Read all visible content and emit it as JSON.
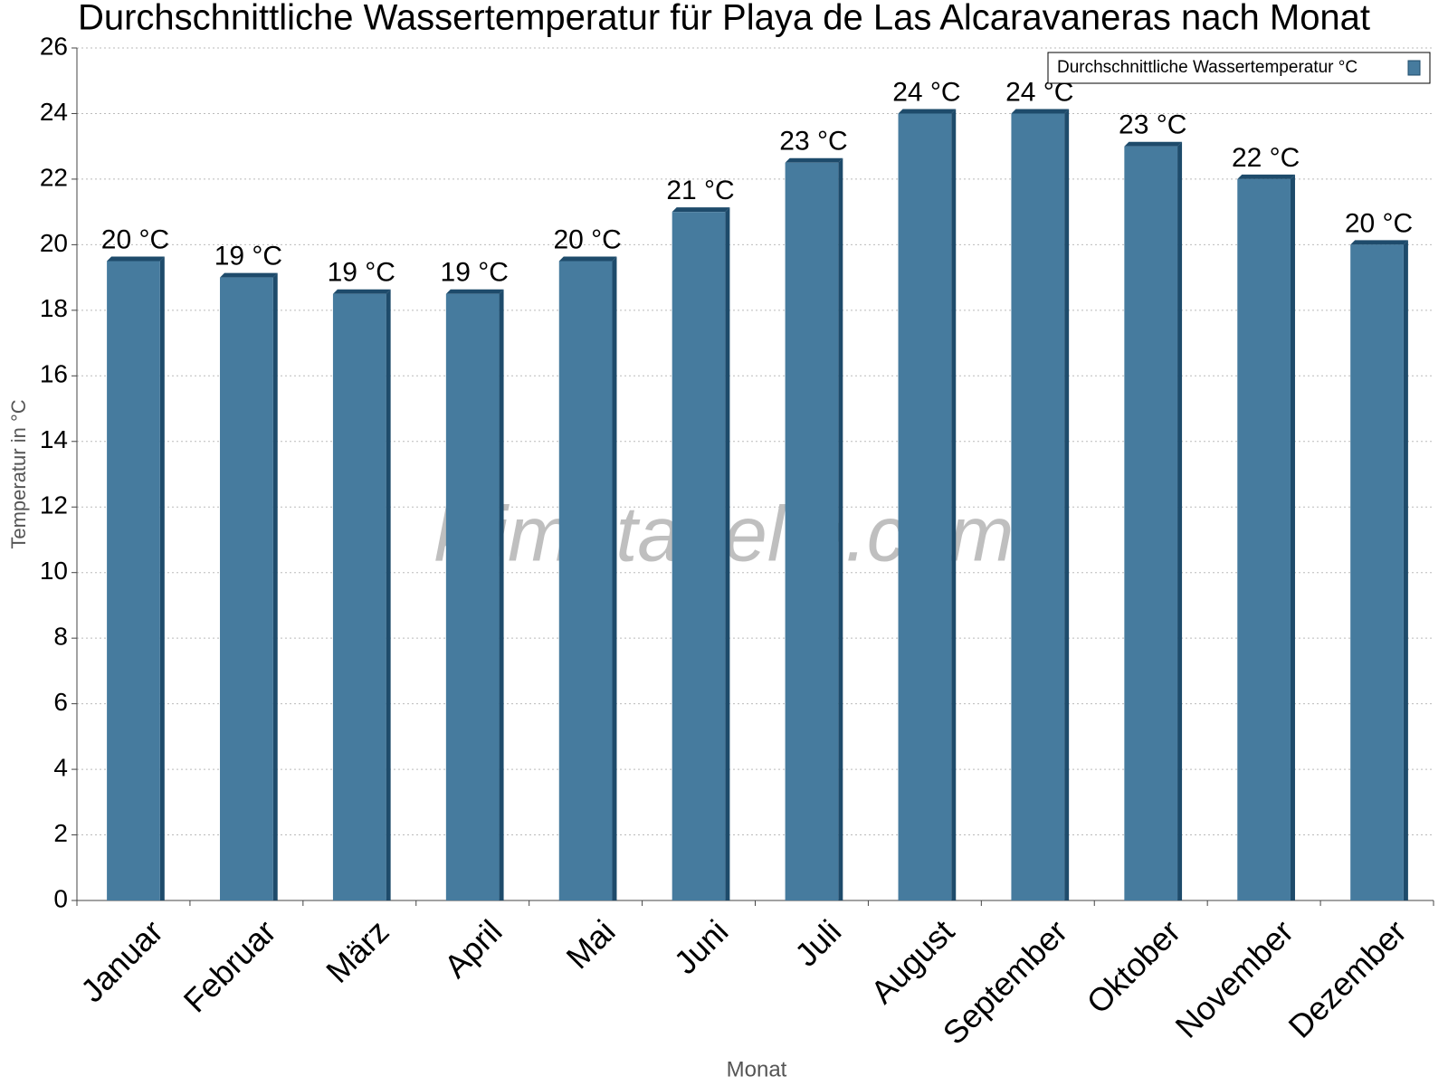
{
  "chart_data": {
    "type": "bar",
    "title": "Durchschnittliche Wassertemperatur für Playa de Las Alcaravaneras nach Monat",
    "watermark": "klimatabelle.com",
    "x_label": "Monat",
    "y_label": "Temperatur in °C",
    "categories": [
      "Januar",
      "Februar",
      "März",
      "April",
      "Mai",
      "Juni",
      "Juli",
      "August",
      "September",
      "Oktober",
      "November",
      "Dezember"
    ],
    "series": [
      {
        "name": "Durchschnittliche Wassertemperatur °C",
        "color": "#467b9e",
        "values": [
          19.5,
          19.0,
          18.5,
          18.5,
          19.5,
          21.0,
          22.5,
          24.0,
          24.0,
          23.0,
          22.0,
          20.0
        ],
        "value_labels": [
          "20 °C",
          "19 °C",
          "19 °C",
          "19 °C",
          "20 °C",
          "21 °C",
          "23 °C",
          "24 °C",
          "24 °C",
          "23 °C",
          "22 °C",
          "20 °C"
        ]
      }
    ],
    "ylim": [
      0,
      26
    ],
    "yticks": [
      0,
      2,
      4,
      6,
      8,
      10,
      12,
      14,
      16,
      18,
      20,
      22,
      24,
      26
    ],
    "grid": true,
    "legend": "top-right"
  }
}
